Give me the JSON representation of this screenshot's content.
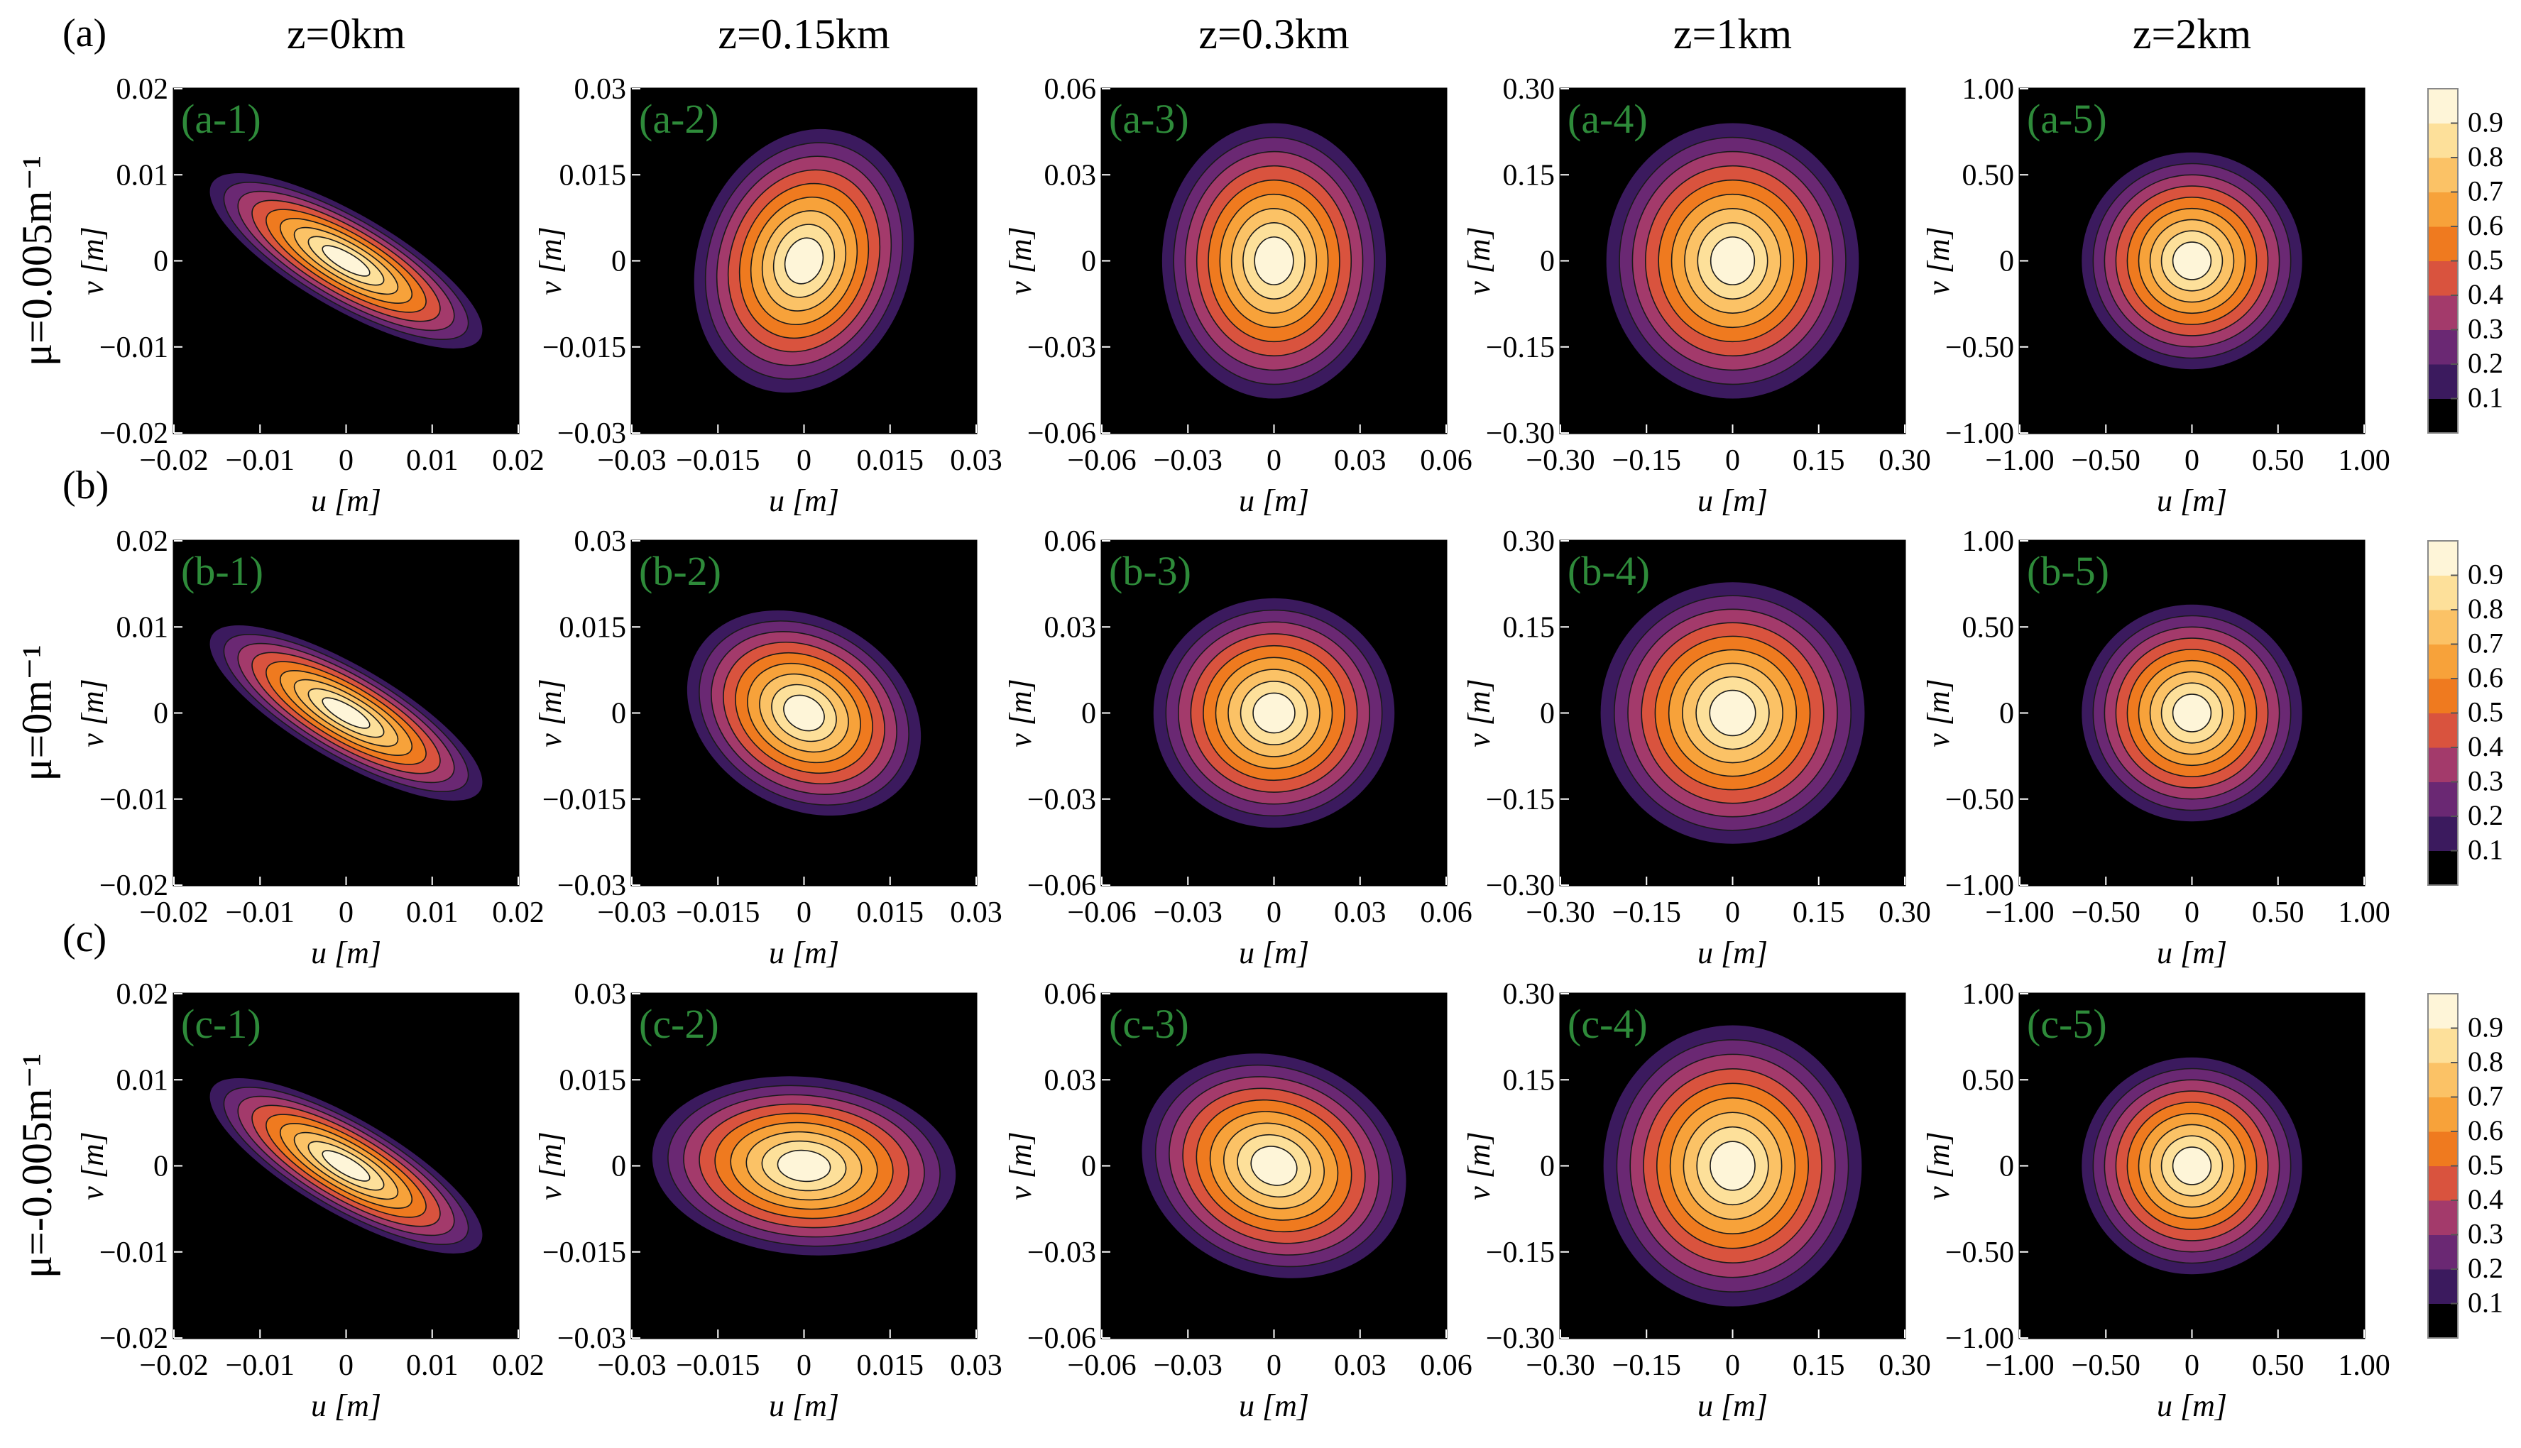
{
  "figure": {
    "column_titles": [
      "z=0km",
      "z=0.15km",
      "z=0.3km",
      "z=1km",
      "z=2km"
    ],
    "row_letters": [
      "(a)",
      "(b)",
      "(c)"
    ],
    "row_labels": [
      "μ=0.005m⁻¹",
      "μ=0m⁻¹",
      "μ=-0.005m⁻¹"
    ],
    "xlabel": "u [m]",
    "ylabel": "v [m]",
    "colorbar": {
      "tick_labels": [
        "0.1",
        "0.2",
        "0.3",
        "0.4",
        "0.5",
        "0.6",
        "0.7",
        "0.8",
        "0.9"
      ],
      "colors": [
        "#000000",
        "#3b1a5e",
        "#6a2873",
        "#a33a6b",
        "#d9533e",
        "#ef7a1f",
        "#f7a23a",
        "#fbc266",
        "#fde09a",
        "#fef5d8"
      ]
    },
    "panel_label_color": "#2e8b3a"
  },
  "chart_data": [
    {
      "type": "heatmap",
      "panel": "(a-1)",
      "z": "z=0km",
      "mu": "μ=0.005m⁻¹",
      "xlim": [
        -0.02,
        0.02
      ],
      "ylim": [
        -0.02,
        0.02
      ],
      "xticks": [
        "−0.02",
        "−0.01",
        "0",
        "0.01",
        "0.02"
      ],
      "yticks": [
        "0.02",
        "0.01",
        "0",
        "−0.01",
        "−0.02"
      ],
      "beam": {
        "semi_major": 0.018,
        "semi_minor": 0.0055,
        "angle_deg": -30
      }
    },
    {
      "type": "heatmap",
      "panel": "(a-2)",
      "z": "z=0.15km",
      "mu": "μ=0.005m⁻¹",
      "xlim": [
        -0.03,
        0.03
      ],
      "ylim": [
        -0.03,
        0.03
      ],
      "xticks": [
        "−0.03",
        "−0.015",
        "0",
        "0.015",
        "0.03"
      ],
      "yticks": [
        "0.03",
        "0.015",
        "0",
        "−0.015",
        "−0.03"
      ],
      "beam": {
        "semi_major": 0.0235,
        "semi_minor": 0.0185,
        "angle_deg": 70
      }
    },
    {
      "type": "heatmap",
      "panel": "(a-3)",
      "z": "z=0.3km",
      "mu": "μ=0.005m⁻¹",
      "xlim": [
        -0.06,
        0.06
      ],
      "ylim": [
        -0.06,
        0.06
      ],
      "xticks": [
        "−0.06",
        "−0.03",
        "0",
        "0.03",
        "0.06"
      ],
      "yticks": [
        "0.06",
        "0.03",
        "0",
        "−0.03",
        "−0.06"
      ],
      "beam": {
        "semi_major": 0.048,
        "semi_minor": 0.039,
        "angle_deg": 90
      }
    },
    {
      "type": "heatmap",
      "panel": "(a-4)",
      "z": "z=1km",
      "mu": "μ=0.005m⁻¹",
      "xlim": [
        -0.3,
        0.3
      ],
      "ylim": [
        -0.3,
        0.3
      ],
      "xticks": [
        "−0.30",
        "−0.15",
        "0",
        "0.15",
        "0.30"
      ],
      "yticks": [
        "0.30",
        "0.15",
        "0",
        "−0.15",
        "−0.30"
      ],
      "beam": {
        "semi_major": 0.24,
        "semi_minor": 0.22,
        "angle_deg": 90
      }
    },
    {
      "type": "heatmap",
      "panel": "(a-5)",
      "z": "z=2km",
      "mu": "μ=0.005m⁻¹",
      "xlim": [
        -1.0,
        1.0
      ],
      "ylim": [
        -1.0,
        1.0
      ],
      "xticks": [
        "−1.00",
        "−0.50",
        "0",
        "0.50",
        "1.00"
      ],
      "yticks": [
        "1.00",
        "0.50",
        "0",
        "−0.50",
        "−1.00"
      ],
      "beam": {
        "semi_major": 0.64,
        "semi_minor": 0.63,
        "angle_deg": 0
      }
    },
    {
      "type": "heatmap",
      "panel": "(b-1)",
      "z": "z=0km",
      "mu": "μ=0m⁻¹",
      "xlim": [
        -0.02,
        0.02
      ],
      "ylim": [
        -0.02,
        0.02
      ],
      "xticks": [
        "−0.02",
        "−0.01",
        "0",
        "0.01",
        "0.02"
      ],
      "yticks": [
        "0.02",
        "0.01",
        "0",
        "−0.01",
        "−0.02"
      ],
      "beam": {
        "semi_major": 0.018,
        "semi_minor": 0.0055,
        "angle_deg": -30
      }
    },
    {
      "type": "heatmap",
      "panel": "(b-2)",
      "z": "z=0.15km",
      "mu": "μ=0m⁻¹",
      "xlim": [
        -0.03,
        0.03
      ],
      "ylim": [
        -0.03,
        0.03
      ],
      "xticks": [
        "−0.03",
        "−0.015",
        "0",
        "0.015",
        "0.03"
      ],
      "yticks": [
        "0.03",
        "0.015",
        "0",
        "−0.015",
        "−0.03"
      ],
      "beam": {
        "semi_major": 0.0215,
        "semi_minor": 0.0165,
        "angle_deg": -30
      }
    },
    {
      "type": "heatmap",
      "panel": "(b-3)",
      "z": "z=0.3km",
      "mu": "μ=0m⁻¹",
      "xlim": [
        -0.06,
        0.06
      ],
      "ylim": [
        -0.06,
        0.06
      ],
      "xticks": [
        "−0.06",
        "−0.03",
        "0",
        "0.03",
        "0.06"
      ],
      "yticks": [
        "0.06",
        "0.03",
        "0",
        "−0.03",
        "−0.06"
      ],
      "beam": {
        "semi_major": 0.042,
        "semi_minor": 0.04,
        "angle_deg": 0
      }
    },
    {
      "type": "heatmap",
      "panel": "(b-4)",
      "z": "z=1km",
      "mu": "μ=0m⁻¹",
      "xlim": [
        -0.3,
        0.3
      ],
      "ylim": [
        -0.3,
        0.3
      ],
      "xticks": [
        "−0.30",
        "−0.15",
        "0",
        "0.15",
        "0.30"
      ],
      "yticks": [
        "0.30",
        "0.15",
        "0",
        "−0.15",
        "−0.30"
      ],
      "beam": {
        "semi_major": 0.23,
        "semi_minor": 0.228,
        "angle_deg": 0
      }
    },
    {
      "type": "heatmap",
      "panel": "(b-5)",
      "z": "z=2km",
      "mu": "μ=0m⁻¹",
      "xlim": [
        -1.0,
        1.0
      ],
      "ylim": [
        -1.0,
        1.0
      ],
      "xticks": [
        "−1.00",
        "−0.50",
        "0",
        "0.50",
        "1.00"
      ],
      "yticks": [
        "1.00",
        "0.50",
        "0",
        "−0.50",
        "−1.00"
      ],
      "beam": {
        "semi_major": 0.64,
        "semi_minor": 0.63,
        "angle_deg": 0
      }
    },
    {
      "type": "heatmap",
      "panel": "(c-1)",
      "z": "z=0km",
      "mu": "μ=-0.005m⁻¹",
      "xlim": [
        -0.02,
        0.02
      ],
      "ylim": [
        -0.02,
        0.02
      ],
      "xticks": [
        "−0.02",
        "−0.01",
        "0",
        "0.01",
        "0.02"
      ],
      "yticks": [
        "0.02",
        "0.01",
        "0",
        "−0.01",
        "−0.02"
      ],
      "beam": {
        "semi_major": 0.018,
        "semi_minor": 0.0055,
        "angle_deg": -30
      }
    },
    {
      "type": "heatmap",
      "panel": "(c-2)",
      "z": "z=0.15km",
      "mu": "μ=-0.005m⁻¹",
      "xlim": [
        -0.03,
        0.03
      ],
      "ylim": [
        -0.03,
        0.03
      ],
      "xticks": [
        "−0.03",
        "−0.015",
        "0",
        "0.015",
        "0.03"
      ],
      "yticks": [
        "0.03",
        "0.015",
        "0",
        "−0.015",
        "−0.03"
      ],
      "beam": {
        "semi_major": 0.0265,
        "semi_minor": 0.0155,
        "angle_deg": -5
      }
    },
    {
      "type": "heatmap",
      "panel": "(c-3)",
      "z": "z=0.3km",
      "mu": "μ=-0.005m⁻¹",
      "xlim": [
        -0.06,
        0.06
      ],
      "ylim": [
        -0.06,
        0.06
      ],
      "xticks": [
        "−0.06",
        "−0.03",
        "0",
        "0.03",
        "0.06"
      ],
      "yticks": [
        "0.06",
        "0.03",
        "0",
        "−0.03",
        "−0.06"
      ],
      "beam": {
        "semi_major": 0.047,
        "semi_minor": 0.038,
        "angle_deg": -20
      }
    },
    {
      "type": "heatmap",
      "panel": "(c-4)",
      "z": "z=1km",
      "mu": "μ=-0.005m⁻¹",
      "xlim": [
        -0.3,
        0.3
      ],
      "ylim": [
        -0.3,
        0.3
      ],
      "xticks": [
        "−0.30",
        "−0.15",
        "0",
        "0.15",
        "0.30"
      ],
      "yticks": [
        "0.30",
        "0.15",
        "0",
        "−0.15",
        "−0.30"
      ],
      "beam": {
        "semi_major": 0.245,
        "semi_minor": 0.225,
        "angle_deg": 90
      }
    },
    {
      "type": "heatmap",
      "panel": "(c-5)",
      "z": "z=2km",
      "mu": "μ=-0.005m⁻¹",
      "xlim": [
        -1.0,
        1.0
      ],
      "ylim": [
        -1.0,
        1.0
      ],
      "xticks": [
        "−1.00",
        "−0.50",
        "0",
        "0.50",
        "1.00"
      ],
      "yticks": [
        "1.00",
        "0.50",
        "0",
        "−0.50",
        "−1.00"
      ],
      "beam": {
        "semi_major": 0.64,
        "semi_minor": 0.63,
        "angle_deg": 0
      }
    }
  ]
}
